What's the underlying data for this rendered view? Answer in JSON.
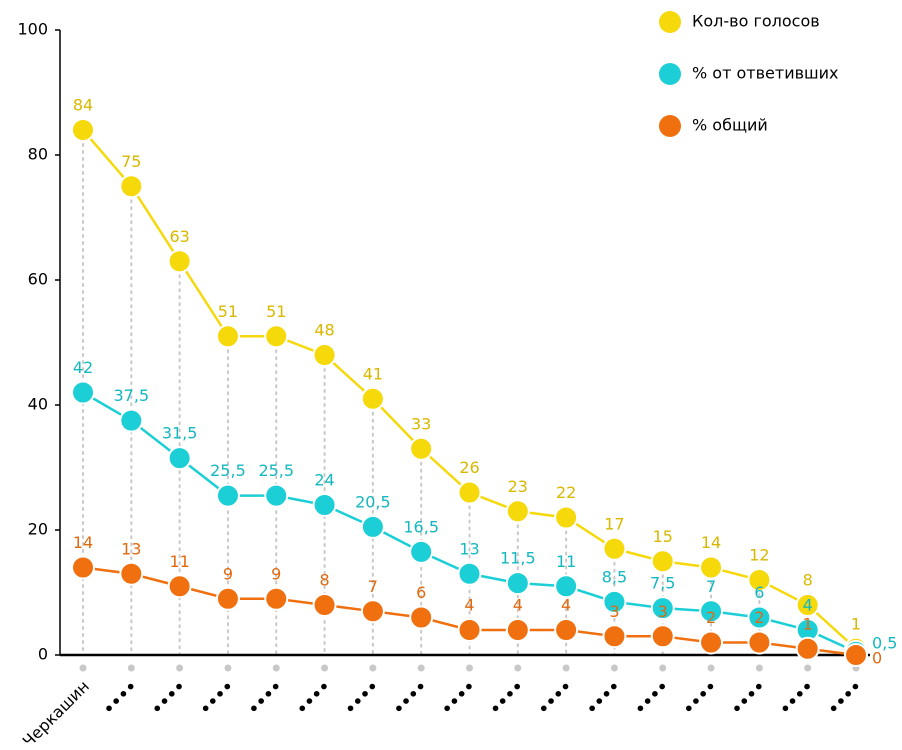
{
  "chart_data": {
    "type": "line",
    "categories": [
      "Черкашин",
      "••••",
      "••••",
      "••••",
      "••••",
      "••••",
      "••••",
      "••••",
      "••••",
      "••••",
      "••••",
      "••••",
      "••••",
      "••••",
      "••••",
      "••••",
      "••••"
    ],
    "series": [
      {
        "name": "Кол-во голосов",
        "color": "#f5d90a",
        "label_color": "#d9b800",
        "values": [
          84,
          75,
          63,
          51,
          51,
          48,
          41,
          33,
          26,
          23,
          22,
          17,
          15,
          14,
          12,
          8,
          1
        ]
      },
      {
        "name": "% от ответивших",
        "color": "#1ccfd6",
        "label_color": "#14b8c0",
        "values": [
          42,
          37.5,
          31.5,
          25.5,
          25.5,
          24,
          20.5,
          16.5,
          13,
          11.5,
          11,
          8.5,
          7.5,
          7,
          6,
          4,
          0.5
        ],
        "value_labels": [
          "42",
          "37,5",
          "31,5",
          "25,5",
          "25,5",
          "24",
          "20,5",
          "16,5",
          "13",
          "11,5",
          "11",
          "8,5",
          "7,5",
          "7",
          "6",
          "4",
          "0,5"
        ]
      },
      {
        "name": "% общий",
        "color": "#f07010",
        "label_color": "#e06a10",
        "values": [
          14,
          13,
          11,
          9,
          9,
          8,
          7,
          6,
          4,
          4,
          4,
          3,
          3,
          2,
          2,
          1,
          0
        ]
      }
    ],
    "ylim": [
      0,
      100
    ],
    "yticks": [
      0,
      20,
      40,
      60,
      80,
      100
    ],
    "legend": "top-right"
  }
}
